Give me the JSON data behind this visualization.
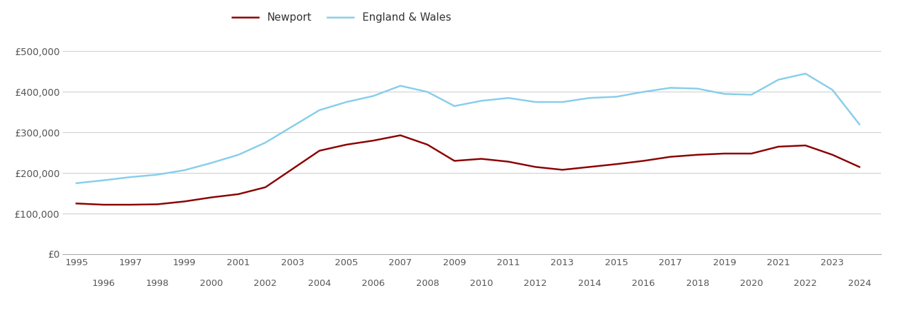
{
  "newport": {
    "years": [
      1995,
      1996,
      1997,
      1998,
      1999,
      2000,
      2001,
      2002,
      2003,
      2004,
      2005,
      2006,
      2007,
      2008,
      2009,
      2010,
      2011,
      2012,
      2013,
      2014,
      2015,
      2016,
      2017,
      2018,
      2019,
      2020,
      2021,
      2022,
      2023,
      2024
    ],
    "values": [
      125000,
      122000,
      122000,
      123000,
      130000,
      140000,
      148000,
      165000,
      210000,
      255000,
      270000,
      280000,
      293000,
      270000,
      230000,
      235000,
      228000,
      215000,
      208000,
      215000,
      222000,
      230000,
      240000,
      245000,
      248000,
      248000,
      265000,
      268000,
      245000,
      215000
    ]
  },
  "england_wales": {
    "years": [
      1995,
      1996,
      1997,
      1998,
      1999,
      2000,
      2001,
      2002,
      2003,
      2004,
      2005,
      2006,
      2007,
      2008,
      2009,
      2010,
      2011,
      2012,
      2013,
      2014,
      2015,
      2016,
      2017,
      2018,
      2019,
      2020,
      2021,
      2022,
      2023,
      2024
    ],
    "values": [
      175000,
      182000,
      190000,
      196000,
      207000,
      225000,
      245000,
      275000,
      315000,
      355000,
      375000,
      390000,
      415000,
      400000,
      365000,
      378000,
      385000,
      375000,
      375000,
      385000,
      388000,
      400000,
      410000,
      408000,
      395000,
      393000,
      430000,
      445000,
      405000,
      320000
    ]
  },
  "newport_color": "#8B0000",
  "england_wales_color": "#87CEEB",
  "background_color": "#ffffff",
  "grid_color": "#d0d0d0",
  "ylim": [
    0,
    550000
  ],
  "yticks": [
    0,
    100000,
    200000,
    300000,
    400000,
    500000
  ],
  "ytick_labels": [
    "£0",
    "£100,000",
    "£200,000",
    "£300,000",
    "£400,000",
    "£500,000"
  ],
  "legend_labels": [
    "Newport",
    "England & Wales"
  ],
  "line_width": 1.8,
  "odd_years": [
    1995,
    1997,
    1999,
    2001,
    2003,
    2005,
    2007,
    2009,
    2011,
    2013,
    2015,
    2017,
    2019,
    2021,
    2023
  ],
  "even_years": [
    1996,
    1998,
    2000,
    2002,
    2004,
    2006,
    2008,
    2010,
    2012,
    2014,
    2016,
    2018,
    2020,
    2022,
    2024
  ]
}
